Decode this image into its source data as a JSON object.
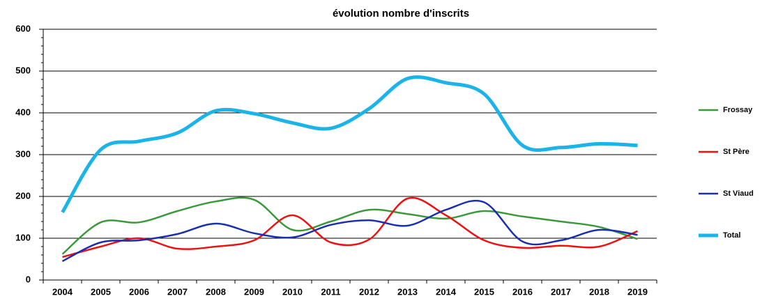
{
  "chart_data": {
    "type": "line",
    "title": "évolution nombre d'inscrits",
    "categories": [
      "2004",
      "2005",
      "2006",
      "2007",
      "2008",
      "2009",
      "2010",
      "2011",
      "2012",
      "2013",
      "2014",
      "2015",
      "2016",
      "2017",
      "2018",
      "2019"
    ],
    "series": [
      {
        "name": "Frossay",
        "color": "#3a9a3a",
        "values": [
          62,
          138,
          138,
          165,
          188,
          192,
          120,
          140,
          168,
          158,
          147,
          165,
          152,
          140,
          127,
          98
        ]
      },
      {
        "name": "St Père",
        "color": "#ee1111",
        "values": [
          55,
          80,
          100,
          75,
          80,
          95,
          155,
          90,
          97,
          195,
          155,
          95,
          77,
          82,
          80,
          117
        ]
      },
      {
        "name": "St Viaud",
        "color": "#1a2fb0",
        "values": [
          45,
          90,
          95,
          110,
          135,
          112,
          102,
          132,
          143,
          130,
          168,
          186,
          92,
          95,
          120,
          108
        ]
      },
      {
        "name": "Total",
        "color": "#1ab4e8",
        "values": [
          162,
          312,
          332,
          352,
          405,
          398,
          376,
          363,
          410,
          482,
          472,
          445,
          322,
          317,
          326,
          322
        ]
      }
    ],
    "ylim": [
      0,
      600
    ],
    "yticks": [
      0,
      100,
      200,
      300,
      400,
      500,
      600
    ],
    "grid": true,
    "legend": "right"
  }
}
